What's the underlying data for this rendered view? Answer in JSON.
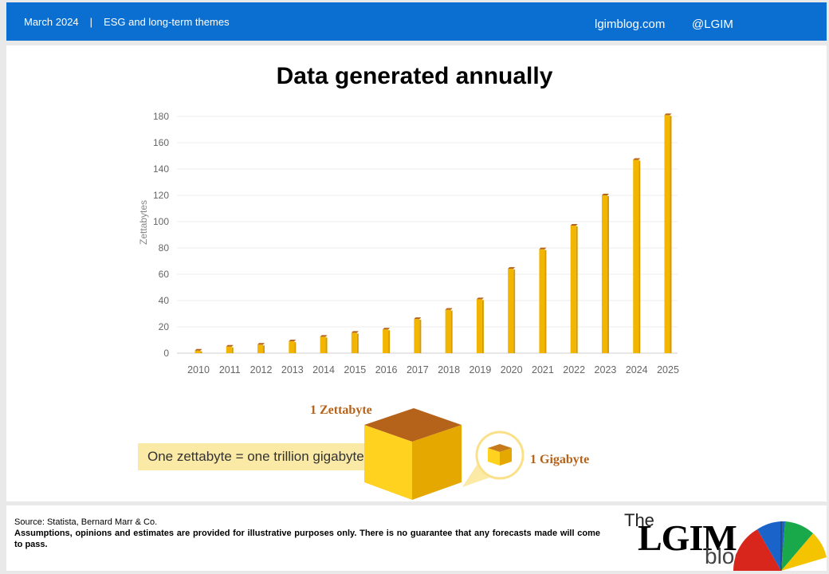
{
  "header": {
    "date": "March 2024",
    "separator": "|",
    "topic": "ESG and long-term themes",
    "site": "lgimblog.com",
    "handle": "@LGIM"
  },
  "chart_data": {
    "type": "bar",
    "title": "Data generated annually",
    "ylabel": "Zettabytes",
    "xlabel": "",
    "ylim": [
      0,
      180
    ],
    "yticks": [
      0,
      20,
      40,
      60,
      80,
      100,
      120,
      140,
      160,
      180
    ],
    "grid": true,
    "categories": [
      "2010",
      "2011",
      "2012",
      "2013",
      "2014",
      "2015",
      "2016",
      "2017",
      "2018",
      "2019",
      "2020",
      "2021",
      "2022",
      "2023",
      "2024",
      "2025"
    ],
    "values": [
      2,
      5,
      6.5,
      9,
      12.5,
      15.5,
      18,
      26,
      33,
      41,
      64.2,
      79,
      97,
      120,
      147,
      181
    ],
    "bar_color": "#f2b600"
  },
  "illustration": {
    "note": "One zettabyte = one trillion gigabytes",
    "zettabyte_label": "1 Zettabyte",
    "gigabyte_label": "1 Gigabyte"
  },
  "footer": {
    "source": "Source: Statista, Bernard Marr & Co.",
    "disclaimer": "Assumptions, opinions and estimates are provided for illustrative purposes only. There is no guarantee that any forecasts made will come to pass."
  },
  "logo": {
    "the": "The",
    "lgim": "LGIM",
    "blog": "blog"
  }
}
